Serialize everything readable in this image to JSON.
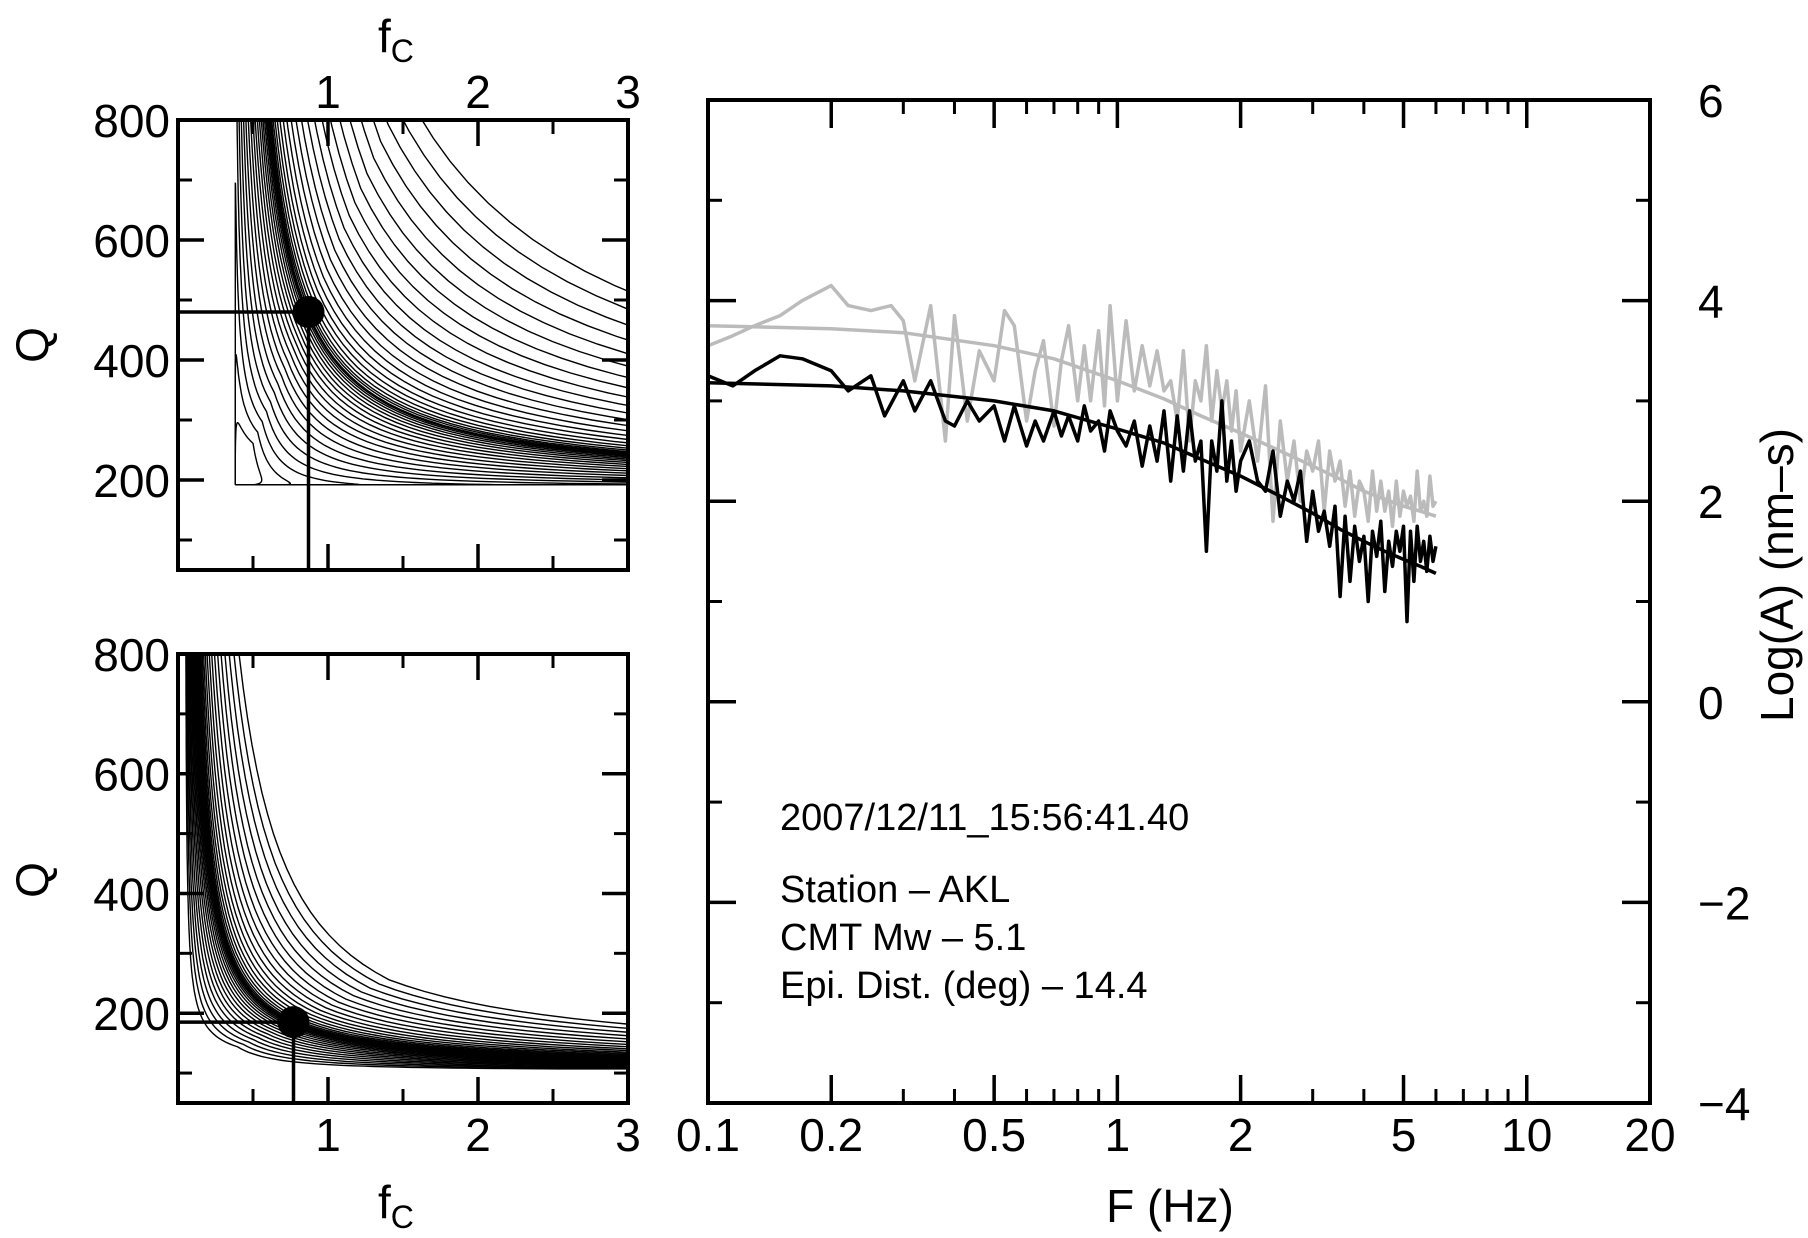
{
  "chart_data": [
    {
      "type": "contour",
      "xlabel": "f",
      "xlabel_sub": "C",
      "ylabel": "Q",
      "xlim": [
        0,
        3
      ],
      "ylim": [
        50,
        800
      ],
      "xticks": [
        1,
        2,
        3
      ],
      "yticks": [
        200,
        400,
        600,
        800
      ],
      "xtick_labels": [
        "1",
        "2",
        "3"
      ],
      "ytick_labels": [
        "200",
        "400",
        "600",
        "800"
      ],
      "x_axis_position": "top",
      "minimum": {
        "fc": 0.87,
        "Q": 480
      },
      "valley": {
        "Q_asymptote": 190,
        "fc_asymptote": 0.38,
        "contours": 22
      }
    },
    {
      "type": "contour",
      "xlabel": "f",
      "xlabel_sub": "C",
      "ylabel": "Q",
      "xlim": [
        0,
        3
      ],
      "ylim": [
        50,
        800
      ],
      "xticks": [
        1,
        2,
        3
      ],
      "yticks": [
        200,
        400,
        600,
        800
      ],
      "xtick_labels": [
        "1",
        "2",
        "3"
      ],
      "ytick_labels": [
        "200",
        "400",
        "600",
        "800"
      ],
      "x_axis_position": "bottom",
      "minimum": {
        "fc": 0.77,
        "Q": 185
      },
      "valley": {
        "Q_asymptote": 105,
        "fc_asymptote": 0.05,
        "contours": 18
      }
    },
    {
      "type": "line",
      "xscale": "log",
      "xlabel": "F  (Hz)",
      "ylabel": "Log(A)  (nm–s)",
      "y_axis_position": "right",
      "xlim": [
        0.1,
        20
      ],
      "ylim": [
        -4,
        6
      ],
      "xticks": [
        0.1,
        0.2,
        0.5,
        1,
        2,
        5,
        10,
        20
      ],
      "xtick_labels": [
        "0.1",
        "0.2",
        "0.5",
        "1",
        "2",
        "5",
        "10",
        "20"
      ],
      "yticks": [
        -4,
        -2,
        0,
        2,
        4,
        6
      ],
      "ytick_labels": [
        "−4",
        "−2",
        "0",
        "2",
        "4",
        "6"
      ],
      "annotation": {
        "datetime": "2007/12/11_15:56:41.40",
        "station": "Station –  AKL",
        "mw": "CMT Mw –  5.1",
        "dist": "Epi. Dist. (deg) –  14.4"
      },
      "series": [
        {
          "color": "#000000",
          "kind": "observed",
          "x": [
            0.1,
            0.115,
            0.13,
            0.15,
            0.17,
            0.2,
            0.22,
            0.25,
            0.27,
            0.3,
            0.32,
            0.35,
            0.38,
            0.4,
            0.43,
            0.46,
            0.5,
            0.53,
            0.56,
            0.6,
            0.63,
            0.66,
            0.7,
            0.73,
            0.76,
            0.8,
            0.83,
            0.86,
            0.9,
            0.93,
            0.96,
            1.0,
            1.05,
            1.1,
            1.15,
            1.2,
            1.25,
            1.3,
            1.35,
            1.4,
            1.45,
            1.5,
            1.55,
            1.6,
            1.65,
            1.7,
            1.75,
            1.8,
            1.85,
            1.9,
            1.95,
            2.0,
            2.1,
            2.2,
            2.3,
            2.4,
            2.5,
            2.6,
            2.7,
            2.8,
            2.9,
            3.0,
            3.1,
            3.2,
            3.3,
            3.4,
            3.5,
            3.6,
            3.7,
            3.8,
            3.9,
            4.0,
            4.1,
            4.2,
            4.3,
            4.4,
            4.5,
            4.6,
            4.7,
            4.8,
            4.9,
            5.0,
            5.1,
            5.2,
            5.3,
            5.4,
            5.5,
            5.6,
            5.7,
            5.8,
            5.9,
            6.0
          ],
          "y": [
            3.25,
            3.15,
            3.3,
            3.45,
            3.42,
            3.3,
            3.1,
            3.25,
            2.85,
            3.2,
            2.9,
            3.2,
            2.8,
            2.75,
            3.0,
            2.8,
            2.95,
            2.6,
            2.95,
            2.55,
            2.8,
            2.6,
            2.9,
            2.65,
            2.85,
            2.6,
            2.95,
            2.7,
            2.8,
            2.5,
            2.9,
            2.7,
            2.55,
            2.8,
            2.35,
            2.75,
            2.4,
            2.9,
            2.2,
            2.85,
            2.3,
            2.9,
            2.4,
            2.6,
            1.5,
            2.6,
            2.3,
            3.0,
            2.2,
            2.6,
            2.1,
            2.4,
            2.6,
            2.2,
            2.1,
            2.5,
            1.85,
            2.2,
            2.0,
            2.3,
            1.6,
            2.1,
            1.7,
            1.9,
            1.55,
            1.95,
            1.05,
            1.85,
            1.2,
            1.75,
            1.4,
            1.65,
            1.0,
            1.7,
            1.45,
            1.8,
            1.1,
            1.6,
            1.35,
            1.7,
            1.5,
            1.75,
            0.8,
            1.7,
            1.2,
            1.75,
            1.4,
            1.6,
            1.3,
            1.65,
            1.4,
            1.55
          ],
          "line_width": 3.5
        },
        {
          "color": "#000000",
          "kind": "model",
          "x": [
            0.1,
            0.2,
            0.3,
            0.5,
            0.7,
            1.0,
            1.3,
            1.6,
            2.0,
            2.5,
            3.0,
            3.5,
            4.0,
            4.5,
            5.0,
            5.5,
            6.0
          ],
          "y": [
            3.18,
            3.15,
            3.1,
            3.0,
            2.9,
            2.72,
            2.58,
            2.42,
            2.25,
            2.05,
            1.88,
            1.72,
            1.6,
            1.5,
            1.42,
            1.35,
            1.28
          ],
          "line_width": 3.5
        },
        {
          "color": "#bbbbbb",
          "kind": "observed",
          "x": [
            0.1,
            0.115,
            0.13,
            0.15,
            0.17,
            0.2,
            0.22,
            0.25,
            0.28,
            0.3,
            0.32,
            0.35,
            0.38,
            0.4,
            0.43,
            0.46,
            0.5,
            0.53,
            0.56,
            0.6,
            0.63,
            0.66,
            0.7,
            0.73,
            0.76,
            0.8,
            0.83,
            0.86,
            0.9,
            0.93,
            0.96,
            1.0,
            1.05,
            1.1,
            1.15,
            1.2,
            1.25,
            1.3,
            1.35,
            1.4,
            1.45,
            1.5,
            1.55,
            1.6,
            1.65,
            1.7,
            1.75,
            1.8,
            1.85,
            1.9,
            1.95,
            2.0,
            2.1,
            2.2,
            2.3,
            2.4,
            2.5,
            2.6,
            2.7,
            2.8,
            2.9,
            3.0,
            3.1,
            3.2,
            3.3,
            3.4,
            3.5,
            3.6,
            3.7,
            3.8,
            3.9,
            4.0,
            4.1,
            4.2,
            4.3,
            4.4,
            4.5,
            4.6,
            4.7,
            4.8,
            4.9,
            5.0,
            5.1,
            5.2,
            5.3,
            5.4,
            5.5,
            5.6,
            5.7,
            5.8,
            5.9,
            6.0
          ],
          "y": [
            3.55,
            3.65,
            3.75,
            3.85,
            4.0,
            4.15,
            3.95,
            3.9,
            3.95,
            3.8,
            3.2,
            3.95,
            2.6,
            3.85,
            2.8,
            3.5,
            3.2,
            3.9,
            3.75,
            2.8,
            3.3,
            3.6,
            2.75,
            3.4,
            3.75,
            3.0,
            3.55,
            3.0,
            3.7,
            2.95,
            3.95,
            3.0,
            3.8,
            3.1,
            3.55,
            3.15,
            3.5,
            3.1,
            3.2,
            2.8,
            3.5,
            2.6,
            3.2,
            3.0,
            3.55,
            2.8,
            3.3,
            2.9,
            3.2,
            2.7,
            3.1,
            2.5,
            3.0,
            2.4,
            3.15,
            1.8,
            2.8,
            2.2,
            2.6,
            2.0,
            2.5,
            2.3,
            2.6,
            1.9,
            2.5,
            2.2,
            2.4,
            1.95,
            2.3,
            1.85,
            2.2,
            2.1,
            1.8,
            2.3,
            1.9,
            2.2,
            1.9,
            2.1,
            1.75,
            2.2,
            1.85,
            2.1,
            1.95,
            2.05,
            1.8,
            2.3,
            1.9,
            2.0,
            1.85,
            2.25,
            1.95,
            2.0
          ],
          "line_width": 3.5
        },
        {
          "color": "#bbbbbb",
          "kind": "model",
          "x": [
            0.1,
            0.2,
            0.3,
            0.5,
            0.7,
            1.0,
            1.3,
            1.6,
            2.0,
            2.5,
            3.0,
            3.5,
            4.0,
            4.5,
            5.0,
            5.5,
            6.0
          ],
          "y": [
            3.75,
            3.72,
            3.68,
            3.55,
            3.42,
            3.2,
            3.02,
            2.85,
            2.68,
            2.5,
            2.35,
            2.22,
            2.1,
            2.02,
            1.95,
            1.9,
            1.85
          ],
          "line_width": 3.5
        }
      ]
    }
  ]
}
